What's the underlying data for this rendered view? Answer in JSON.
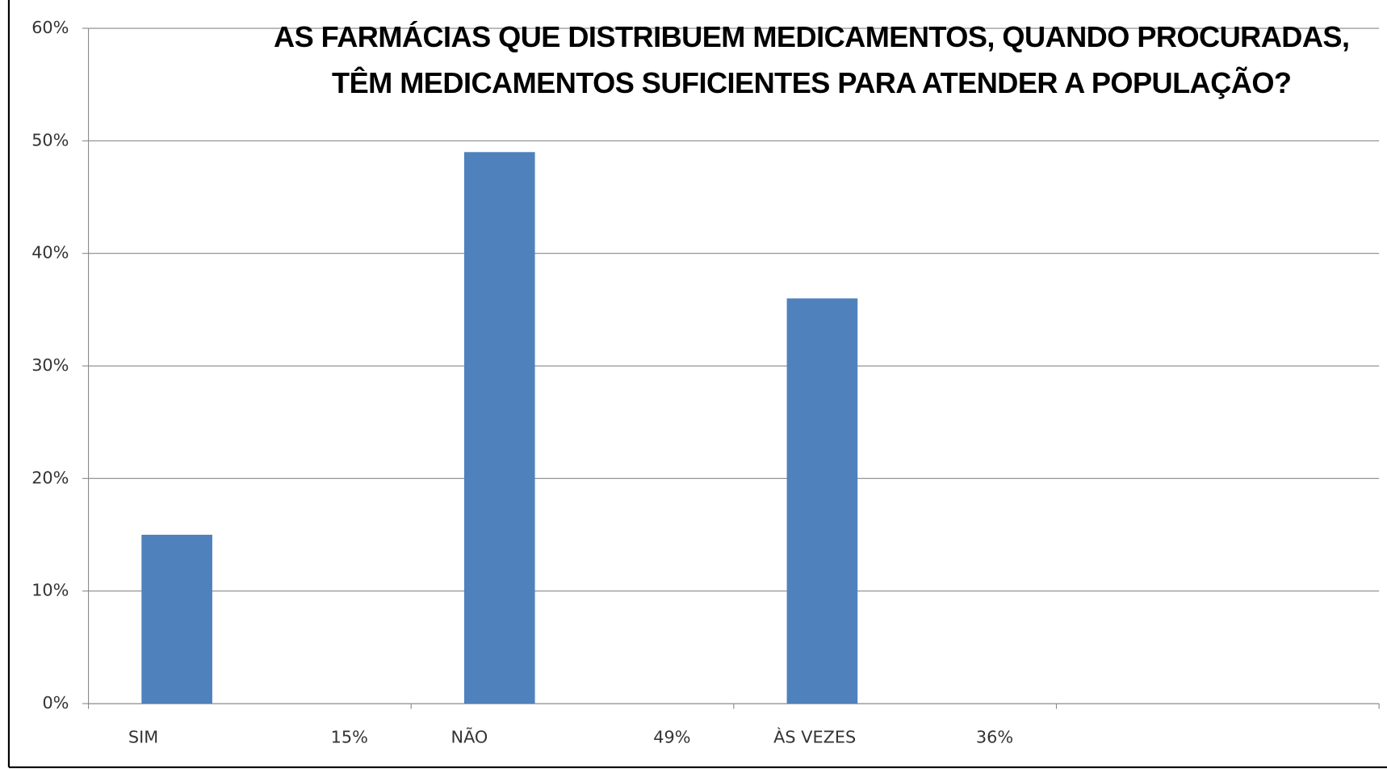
{
  "chart_data": {
    "type": "bar",
    "title": "AS FARMÁCIAS QUE DISTRIBUEM MEDICAMENTOS, QUANDO PROCURADAS, TÊM MEDICAMENTOS SUFICIENTES PARA ATENDER A POPULAÇÃO?",
    "categories": [
      "SIM",
      "NÃO",
      "ÀS VEZES",
      null
    ],
    "values": [
      15,
      49,
      36,
      null
    ],
    "value_labels": [
      "15%",
      "49%",
      "36%",
      null
    ],
    "color": "#4f81bd",
    "ylim": [
      0,
      60
    ],
    "yticks": [
      {
        "value": 0,
        "label": "0%"
      },
      {
        "value": 10,
        "label": "10%"
      },
      {
        "value": 20,
        "label": "20%"
      },
      {
        "value": 30,
        "label": "30%"
      },
      {
        "value": 40,
        "label": "40%"
      },
      {
        "value": 50,
        "label": "50%"
      },
      {
        "value": 60,
        "label": "60%"
      }
    ],
    "grid": true
  }
}
